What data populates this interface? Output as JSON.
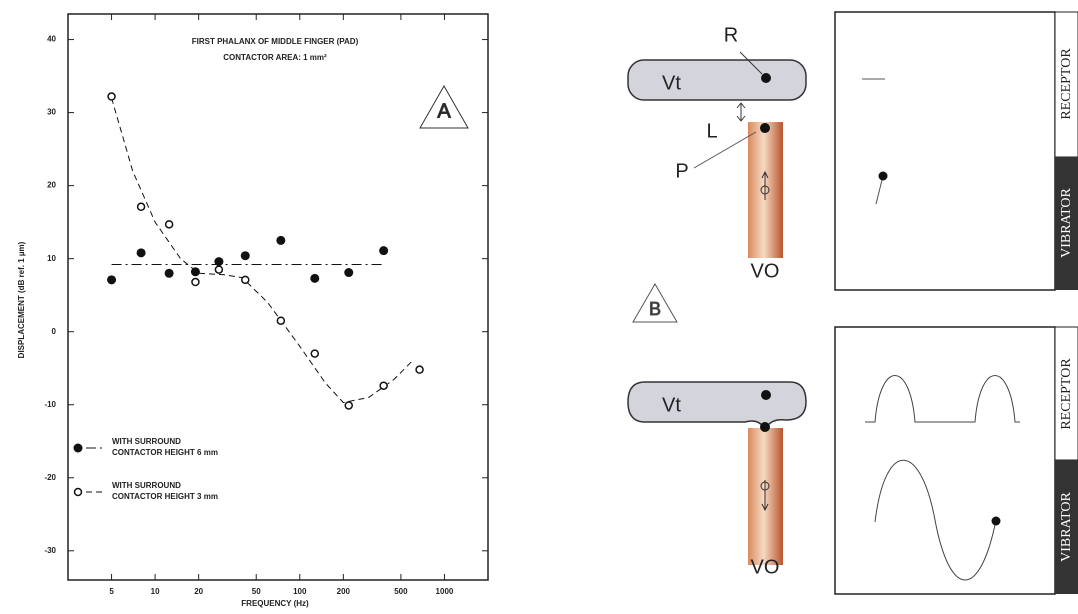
{
  "chart_data": {
    "type": "scatter",
    "title": "FIRST PHALANX OF MIDDLE FINGER (PAD)",
    "subtitle": "CONTACTOR AREA: 1 mm²",
    "annotation": "A",
    "x_label": "FREQUENCY (Hz)",
    "y_label": "DISPLACEMENT (dB ref. 1 µm)",
    "log_x": true,
    "xlim": [
      2.5,
      2000
    ],
    "ylim": [
      -34,
      43.5
    ],
    "xticks": [
      5,
      10,
      20,
      50,
      100,
      200,
      500,
      1000
    ],
    "yticks": [
      40,
      30,
      20,
      10,
      0,
      -10,
      -20,
      -30
    ],
    "legend": "lower left",
    "series": [
      {
        "name": "WITH SURROUND\nCONTACTOR HEIGHT 6 mm",
        "color": "#111111",
        "marker": "filled",
        "x": [
          5,
          8,
          12.5,
          19,
          27.6,
          42,
          74,
          127,
          218,
          380
        ],
        "values": [
          7.1,
          10.8,
          8,
          8.2,
          9.6,
          10.4,
          12.5,
          7.3,
          8.1,
          11.1
        ],
        "fit": {
          "x": [
            5,
            380
          ],
          "y": [
            9.2,
            9.2
          ],
          "dash": "10 4 2 4"
        }
      },
      {
        "name": "WITH SURROUND\nCONTACTOR HEIGHT 3 mm",
        "color": "#111111",
        "marker": "open",
        "x": [
          5,
          8,
          12.5,
          19,
          27.6,
          42,
          74,
          127,
          218,
          380,
          673
        ],
        "values": [
          32.2,
          17.1,
          14.7,
          6.8,
          8.5,
          7.1,
          1.5,
          -3,
          -10.1,
          -7.4,
          -5.2
        ],
        "fit": {
          "x": [
            5,
            7,
            10,
            15,
            20,
            30,
            40,
            60,
            100,
            150,
            200,
            300,
            450,
            600
          ],
          "y": [
            32,
            22,
            15,
            10,
            8,
            7.8,
            7.4,
            4,
            -2,
            -7,
            -9.7,
            -9,
            -6.5,
            -4
          ],
          "dash": "6 4"
        }
      }
    ]
  },
  "diagram": {
    "top": {
      "receptor_label": "R",
      "skin_label": "Vt",
      "gap_label": "L",
      "probe_tip_label": "P",
      "probe_label": "VO",
      "panel_labels": [
        "RECEPTOR",
        "VIBRATOR"
      ]
    },
    "marker": "B",
    "bottom": {
      "skin_label": "Vt",
      "probe_label": "VO",
      "panel_labels": [
        "RECEPTOR",
        "VIBRATOR"
      ]
    }
  }
}
